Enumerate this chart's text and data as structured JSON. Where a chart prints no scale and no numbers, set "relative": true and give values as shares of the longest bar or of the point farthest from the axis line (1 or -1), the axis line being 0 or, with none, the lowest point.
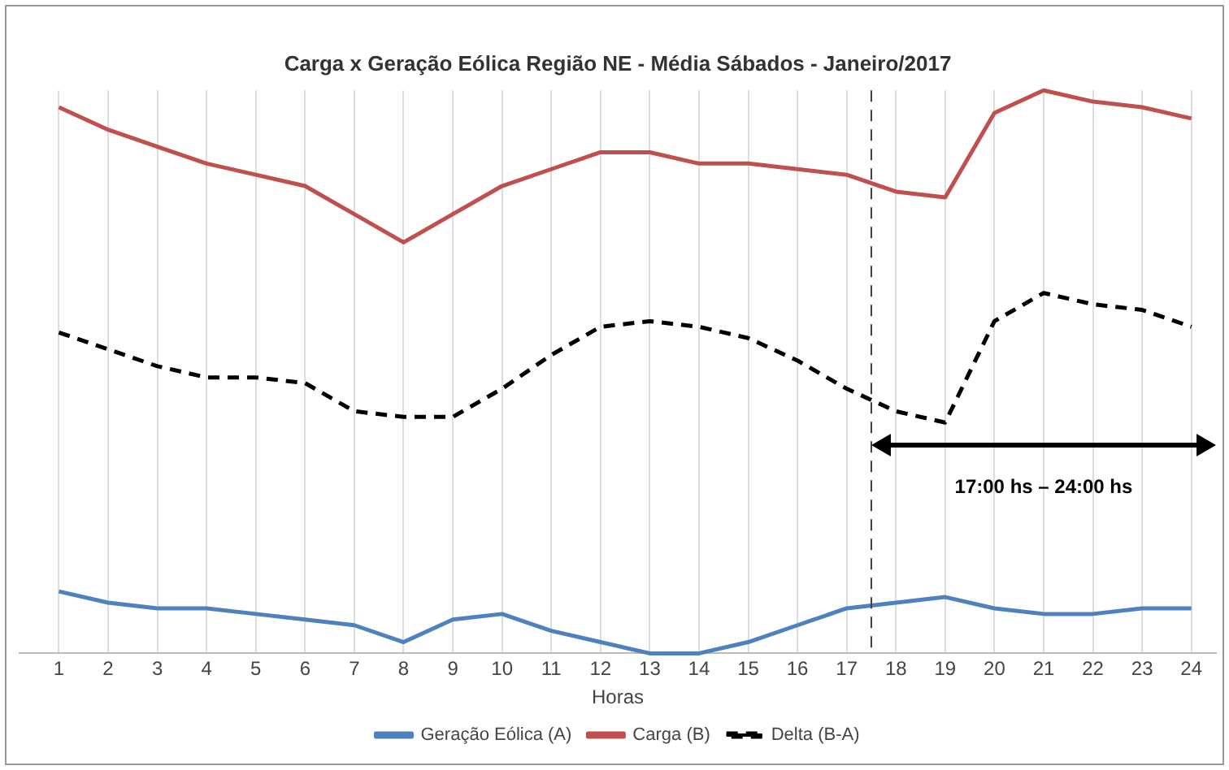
{
  "chart_data": {
    "type": "line",
    "title": "Carga x Geração Eólica Região NE - Média Sábados - Janeiro/2017",
    "xlabel": "Horas",
    "relative": true,
    "x": [
      1,
      2,
      3,
      4,
      5,
      6,
      7,
      8,
      9,
      10,
      11,
      12,
      13,
      14,
      15,
      16,
      17,
      18,
      19,
      20,
      21,
      22,
      23,
      24
    ],
    "xlim": [
      0.2,
      24.5
    ],
    "xticks": [
      1,
      2,
      3,
      4,
      5,
      6,
      7,
      8,
      9,
      10,
      11,
      12,
      13,
      14,
      15,
      16,
      17,
      18,
      19,
      20,
      21,
      22,
      23,
      24
    ],
    "series": [
      {
        "name": "Geração Eólica (A)",
        "color": "#4f81bd",
        "line_style": "solid",
        "values": [
          0.11,
          0.09,
          0.08,
          0.08,
          0.07,
          0.06,
          0.05,
          0.02,
          0.06,
          0.07,
          0.04,
          0.02,
          0,
          0,
          0.02,
          0.05,
          0.08,
          0.09,
          0.1,
          0.08,
          0.07,
          0.07,
          0.08,
          0.08
        ]
      },
      {
        "name": "Carga (B)",
        "color": "#c0504d",
        "line_style": "solid",
        "values": [
          0.97,
          0.93,
          0.9,
          0.87,
          0.85,
          0.83,
          0.78,
          0.73,
          0.78,
          0.83,
          0.86,
          0.89,
          0.89,
          0.87,
          0.87,
          0.86,
          0.85,
          0.82,
          0.81,
          0.96,
          1,
          0.98,
          0.97,
          0.95
        ]
      },
      {
        "name": "Delta (B-A)",
        "color": "#000000",
        "line_style": "dashed",
        "values": [
          0.57,
          0.54,
          0.51,
          0.49,
          0.49,
          0.48,
          0.43,
          0.42,
          0.42,
          0.47,
          0.53,
          0.58,
          0.59,
          0.58,
          0.56,
          0.52,
          0.47,
          0.43,
          0.41,
          0.59,
          0.64,
          0.62,
          0.61,
          0.58
        ]
      }
    ],
    "ref_lines": [
      {
        "axis": "x",
        "value": 17.5,
        "color": "#404040",
        "line_style": "dashed"
      }
    ],
    "annotations": [
      "17:00 hs – 24:00 hs"
    ],
    "grid": "x",
    "legend": "bottom",
    "marker": "none"
  }
}
